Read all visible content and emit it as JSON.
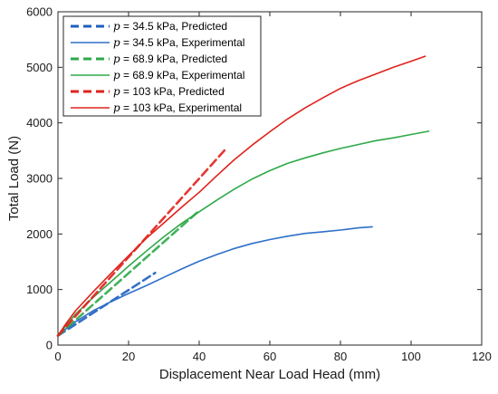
{
  "chart_data": {
    "type": "line",
    "title": "",
    "xlabel": "Displacement Near Load Head (mm)",
    "ylabel": "Total Load (N)",
    "xlim": [
      0,
      120
    ],
    "ylim": [
      0,
      6000
    ],
    "xticks": [
      0,
      20,
      40,
      60,
      80,
      100,
      120
    ],
    "yticks": [
      0,
      1000,
      2000,
      3000,
      4000,
      5000,
      6000
    ],
    "xtick_labels": [
      "0",
      "20",
      "40",
      "60",
      "80",
      "100",
      "120"
    ],
    "ytick_labels": [
      "0",
      "1000",
      "2000",
      "3000",
      "4000",
      "5000",
      "6000"
    ],
    "grid": false,
    "legend_position": "top-left",
    "series": [
      {
        "name": "p = 34.5 kPa, Predicted",
        "symbol": "p",
        "label_rest": " = 34.5 kPa, Predicted",
        "color": "#1f5fbf",
        "dash": true,
        "x": [
          0,
          27.5
        ],
        "y": [
          170,
          1300
        ]
      },
      {
        "name": "p = 34.5 kPa, Experimental",
        "symbol": "p",
        "label_rest": " = 34.5 kPa, Experimental",
        "color": "#2e6fc9",
        "dash": false,
        "x": [
          0,
          2,
          5,
          10,
          15,
          20,
          25,
          30,
          35,
          40,
          45,
          50,
          55,
          60,
          65,
          70,
          75,
          80,
          85,
          89
        ],
        "y": [
          170,
          280,
          420,
          620,
          780,
          930,
          1070,
          1220,
          1370,
          1510,
          1630,
          1740,
          1830,
          1900,
          1960,
          2010,
          2040,
          2070,
          2110,
          2130
        ]
      },
      {
        "name": "p = 68.9 kPa, Predicted",
        "symbol": "p",
        "label_rest": " = 68.9 kPa, Predicted",
        "color": "#2eaa4a",
        "dash": true,
        "x": [
          0,
          40
        ],
        "y": [
          170,
          2420
        ]
      },
      {
        "name": "p = 68.9 kPa, Experimental",
        "symbol": "p",
        "label_rest": " = 68.9 kPa, Experimental",
        "color": "#2eaa4a",
        "dash": false,
        "x": [
          0,
          2,
          5,
          10,
          15,
          20,
          25,
          30,
          35,
          40,
          45,
          50,
          55,
          60,
          65,
          70,
          75,
          80,
          85,
          90,
          95,
          100,
          105
        ],
        "y": [
          170,
          330,
          560,
          860,
          1140,
          1420,
          1690,
          1950,
          2190,
          2400,
          2610,
          2810,
          2990,
          3140,
          3270,
          3370,
          3460,
          3540,
          3610,
          3680,
          3730,
          3790,
          3850
        ]
      },
      {
        "name": "p = 103 kPa, Predicted",
        "symbol": "p",
        "label_rest": " = 103 kPa, Predicted",
        "color": "#e0221c",
        "dash": true,
        "x": [
          0,
          47.5
        ],
        "y": [
          170,
          3530
        ]
      },
      {
        "name": "p = 103 kPa, Experimental",
        "symbol": "p",
        "label_rest": " = 103 kPa, Experimental",
        "color": "#e0221c",
        "dash": false,
        "x": [
          0,
          2,
          5,
          10,
          15,
          20,
          25,
          30,
          35,
          40,
          45,
          50,
          55,
          60,
          65,
          70,
          75,
          80,
          85,
          90,
          95,
          100,
          104
        ],
        "y": [
          170,
          360,
          620,
          960,
          1290,
          1610,
          1920,
          2200,
          2480,
          2750,
          3050,
          3340,
          3600,
          3840,
          4070,
          4270,
          4450,
          4620,
          4760,
          4880,
          5000,
          5110,
          5200
        ]
      }
    ]
  }
}
